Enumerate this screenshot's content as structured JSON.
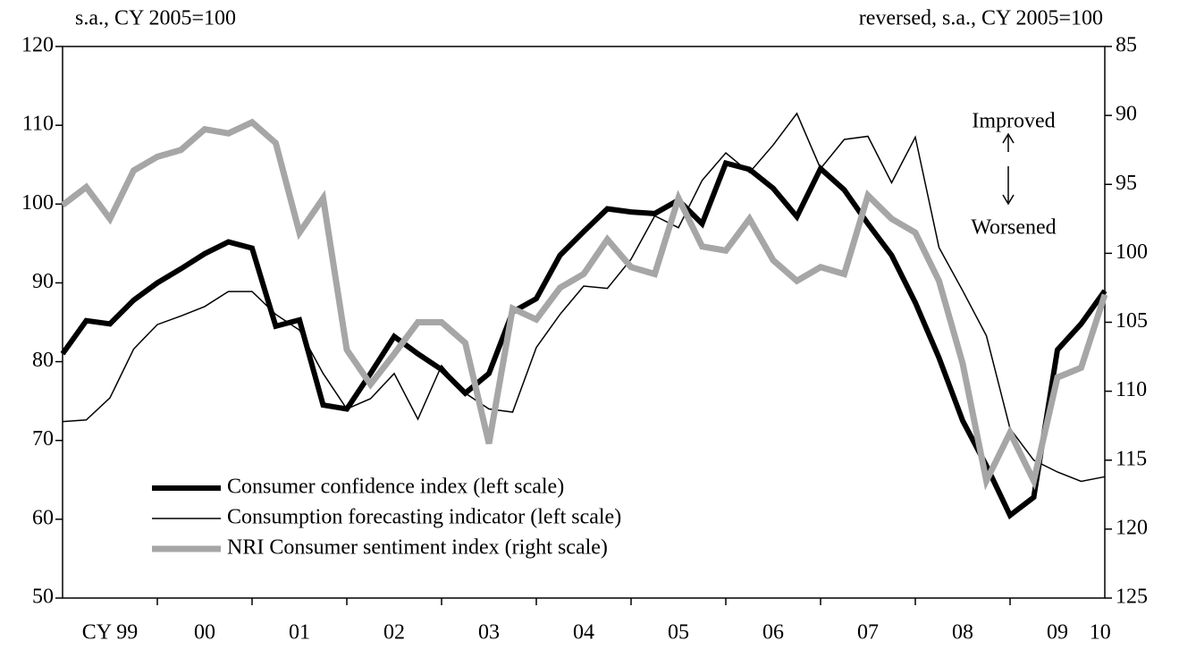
{
  "chart_data": {
    "type": "line",
    "y_axis_label": "s.a., CY 2005=100",
    "y2_axis_label": "reversed, s.a., CY 2005=100",
    "annotations": [
      "Improved",
      "Worsened"
    ],
    "x": [
      1999,
      1999.25,
      1999.5,
      1999.75,
      2000,
      2000.25,
      2000.5,
      2000.75,
      2001,
      2001.25,
      2001.5,
      2001.75,
      2002,
      2002.25,
      2002.5,
      2002.75,
      2003,
      2003.25,
      2003.5,
      2003.75,
      2004,
      2004.25,
      2004.5,
      2004.75,
      2005,
      2005.25,
      2005.5,
      2005.75,
      2006,
      2006.25,
      2006.5,
      2006.75,
      2007,
      2007.25,
      2007.5,
      2007.75,
      2008,
      2008.25,
      2008.5,
      2008.75,
      2009,
      2009.25,
      2009.5,
      2009.75,
      2010
    ],
    "xlim": [
      1999,
      2010
    ],
    "xticks": [
      2000,
      2001,
      2002,
      2003,
      2004,
      2005,
      2006,
      2007,
      2008,
      2009
    ],
    "xtick_labels": [
      {
        "value": 1999.5,
        "label": "CY 99"
      },
      {
        "value": 2000.5,
        "label": "00"
      },
      {
        "value": 2001.5,
        "label": "01"
      },
      {
        "value": 2002.5,
        "label": "02"
      },
      {
        "value": 2003.5,
        "label": "03"
      },
      {
        "value": 2004.5,
        "label": "04"
      },
      {
        "value": 2005.5,
        "label": "05"
      },
      {
        "value": 2006.5,
        "label": "06"
      },
      {
        "value": 2007.5,
        "label": "07"
      },
      {
        "value": 2008.5,
        "label": "08"
      },
      {
        "value": 2009.5,
        "label": "09"
      },
      {
        "value": 2009.95,
        "label": "10"
      }
    ],
    "ylim": [
      50,
      120
    ],
    "yticks": [
      50,
      60,
      70,
      80,
      90,
      100,
      110,
      120
    ],
    "y2lim": [
      125,
      85
    ],
    "y2ticks": [
      85,
      90,
      95,
      100,
      105,
      110,
      115,
      120,
      125
    ],
    "y2_reversed": true,
    "legend": "lower left",
    "series": [
      {
        "name": "Consumer confidence index (left scale)",
        "color": "#000000",
        "values": [
          81,
          85.2,
          84.8,
          87.8,
          90,
          91.8,
          93.7,
          95.2,
          94.4,
          84.5,
          85.3,
          74.5,
          74,
          78.5,
          83.2,
          81,
          79,
          76,
          78.5,
          86.3,
          88,
          93.5,
          96.5,
          99.4,
          99,
          98.8,
          100.5,
          97.5,
          105.2,
          104.4,
          102,
          98.4,
          104.5,
          101.8,
          97.5,
          93.5,
          87.5,
          80.5,
          72.5,
          66.8,
          60.5,
          62.8,
          81.5,
          84.8,
          89
        ]
      },
      {
        "name": "Consumption forecasting indicator (left scale)",
        "color": "#000000",
        "values": [
          72.4,
          72.6,
          75.4,
          81.6,
          84.7,
          85.8,
          87,
          88.9,
          88.9,
          86,
          84,
          78.5,
          74,
          75.3,
          78.5,
          72.7,
          79.5,
          76,
          74,
          73.6,
          81.8,
          86,
          89.6,
          89.3,
          93,
          98.5,
          97,
          103,
          106.5,
          104,
          107.5,
          111.5,
          104.5,
          108.2,
          108.6,
          102.7,
          108.5,
          94.5,
          89,
          83.3,
          71.5,
          67.5,
          66,
          64.8,
          65.4
        ]
      },
      {
        "name": "NRI Consumer sentiment index (right scale)",
        "color": "#a6a6a6",
        "axis": "y2",
        "values": [
          96.5,
          95.2,
          97.5,
          94,
          93,
          92.5,
          91,
          91.3,
          90.5,
          92,
          98.5,
          96,
          107,
          109.5,
          107.3,
          105,
          105,
          106.5,
          113.8,
          104,
          104.8,
          102.5,
          101.5,
          99,
          101,
          101.5,
          96,
          99.5,
          99.8,
          97.5,
          100.5,
          102,
          101,
          101.5,
          95.8,
          97.5,
          98.5,
          102,
          108,
          116.5,
          113,
          116.5,
          109,
          108.3,
          103
        ]
      }
    ]
  }
}
